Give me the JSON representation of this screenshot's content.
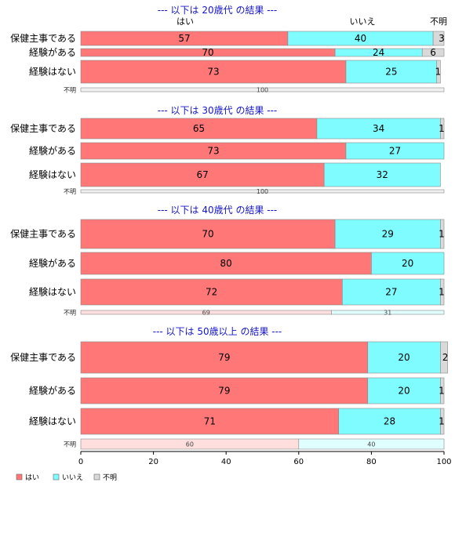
{
  "chart_data": {
    "type": "bar",
    "orientation": "horizontal",
    "stacked": true,
    "percent": true,
    "series_names": [
      "はい",
      "いいえ",
      "不明"
    ],
    "colors": {
      "はい": "#ff7777",
      "いいえ": "#7ffcff",
      "不明": "#d9d9d9"
    },
    "top_labels": [
      "はい",
      "いいえ",
      "不明"
    ],
    "xlim": [
      0,
      100
    ],
    "xticks": [
      0,
      20,
      40,
      60,
      80,
      100
    ],
    "legend": {
      "position": "bottom-left",
      "items": [
        "はい",
        "いいえ",
        "不明"
      ]
    },
    "panels": [
      {
        "title": "--- 以下は 20歳代 の結果 ---",
        "rows": [
          {
            "label": "保健主事である",
            "values": [
              57,
              40,
              3
            ]
          },
          {
            "label": "経験がある",
            "values": [
              70,
              24,
              6
            ]
          },
          {
            "label": "経験はない",
            "values": [
              73,
              25,
              1
            ]
          },
          {
            "label": "不明",
            "values": [
              0,
              0,
              100
            ]
          }
        ]
      },
      {
        "title": "--- 以下は 30歳代 の結果 ---",
        "rows": [
          {
            "label": "保健主事である",
            "values": [
              65,
              34,
              1
            ]
          },
          {
            "label": "経験がある",
            "values": [
              73,
              27,
              0
            ]
          },
          {
            "label": "経験はない",
            "values": [
              67,
              32,
              0
            ]
          },
          {
            "label": "不明",
            "values": [
              0,
              0,
              100
            ]
          }
        ]
      },
      {
        "title": "--- 以下は 40歳代 の結果 ---",
        "rows": [
          {
            "label": "保健主事である",
            "values": [
              70,
              29,
              1
            ]
          },
          {
            "label": "経験がある",
            "values": [
              80,
              20,
              0
            ]
          },
          {
            "label": "経験はない",
            "values": [
              72,
              27,
              1
            ]
          },
          {
            "label": "不明",
            "values": [
              69,
              31,
              0
            ]
          }
        ]
      },
      {
        "title": "--- 以下は 50歳以上 の結果 ---",
        "rows": [
          {
            "label": "保健主事である",
            "values": [
              79,
              20,
              2
            ]
          },
          {
            "label": "経験がある",
            "values": [
              79,
              20,
              1
            ]
          },
          {
            "label": "経験はない",
            "values": [
              71,
              28,
              1
            ]
          },
          {
            "label": "不明",
            "values": [
              60,
              40,
              0
            ]
          }
        ]
      }
    ]
  }
}
